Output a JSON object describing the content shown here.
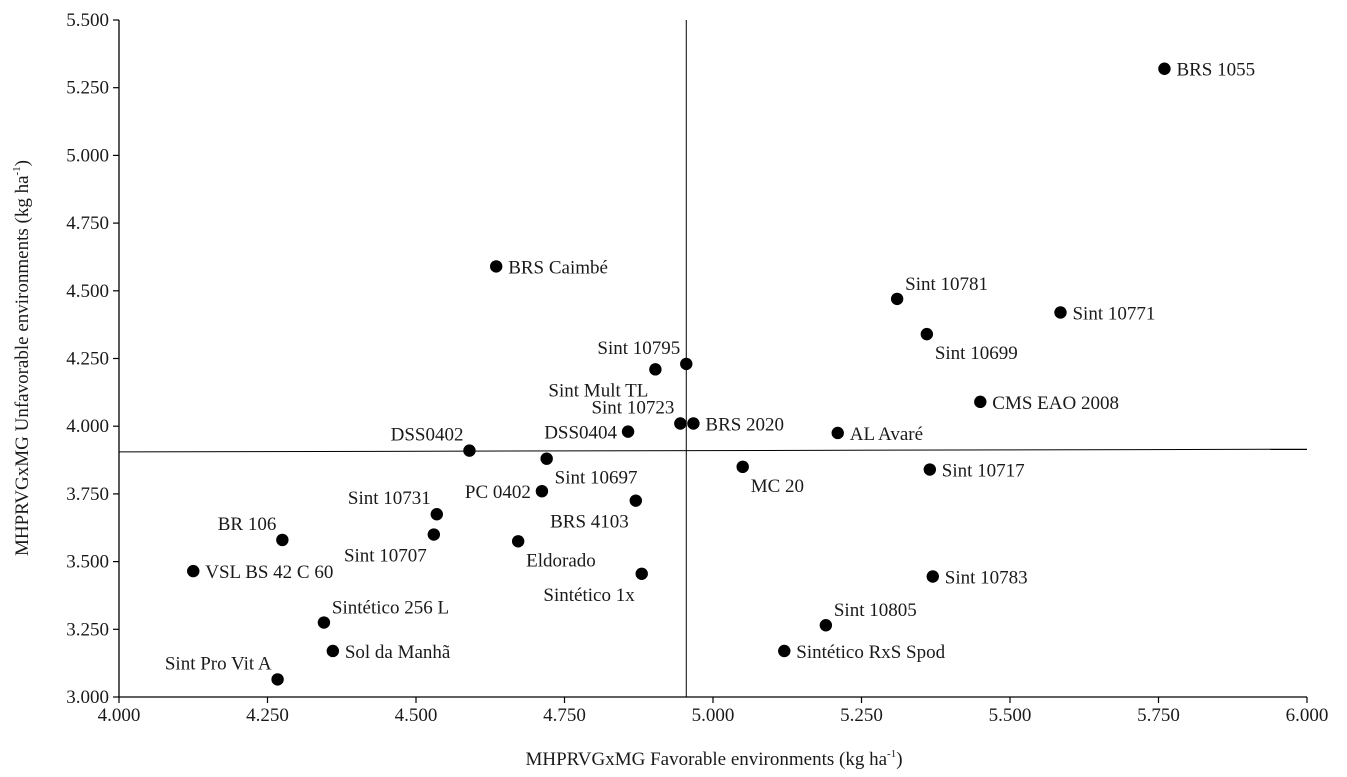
{
  "chart_data": {
    "type": "scatter",
    "title": "",
    "xlabel": {
      "main": "MHPRVGxMG Favorable environments (kg ha",
      "sup": "-1",
      "end": ")"
    },
    "ylabel": {
      "main": "MHPRVGxMG Unfavorable environments (kg ha",
      "sup": "-1",
      "end": ")"
    },
    "xlim": [
      4.0,
      6.0
    ],
    "ylim": [
      3.0,
      5.5
    ],
    "xticks": [
      {
        "v": 4.0,
        "label": "4.000"
      },
      {
        "v": 4.25,
        "label": "4.250"
      },
      {
        "v": 4.5,
        "label": "4.500"
      },
      {
        "v": 4.75,
        "label": "4.750"
      },
      {
        "v": 5.0,
        "label": "5.000"
      },
      {
        "v": 5.25,
        "label": "5.250"
      },
      {
        "v": 5.5,
        "label": "5.500"
      },
      {
        "v": 5.75,
        "label": "5.750"
      },
      {
        "v": 6.0,
        "label": "6.000"
      }
    ],
    "yticks": [
      {
        "v": 3.0,
        "label": "3.000"
      },
      {
        "v": 3.25,
        "label": "3.250"
      },
      {
        "v": 3.5,
        "label": "3.500"
      },
      {
        "v": 3.75,
        "label": "3.750"
      },
      {
        "v": 4.0,
        "label": "4.000"
      },
      {
        "v": 4.25,
        "label": "4.250"
      },
      {
        "v": 4.5,
        "label": "4.500"
      },
      {
        "v": 4.75,
        "label": "4.750"
      },
      {
        "v": 5.0,
        "label": "5.000"
      },
      {
        "v": 5.25,
        "label": "5.250"
      },
      {
        "v": 5.5,
        "label": "5.500"
      }
    ],
    "reference_lines": {
      "vertical_x": 4.955,
      "horizontal": {
        "x0": 4.0,
        "y0": 3.905,
        "x1": 6.0,
        "y1": 3.915
      }
    },
    "grid": false,
    "marker_color": "#000000",
    "points": [
      {
        "name": "BRS 1055",
        "x": 5.76,
        "y": 5.32,
        "pos": "right"
      },
      {
        "name": "BRS Caimbé",
        "x": 4.635,
        "y": 4.59,
        "pos": "right"
      },
      {
        "name": "Sint 10781",
        "x": 5.31,
        "y": 4.47,
        "pos": "upper-right"
      },
      {
        "name": "Sint 10771",
        "x": 5.585,
        "y": 4.42,
        "pos": "right"
      },
      {
        "name": "Sint 10699",
        "x": 5.36,
        "y": 4.34,
        "pos": "lower-right"
      },
      {
        "name": "Sint 10795",
        "x": 4.955,
        "y": 4.23,
        "pos": "upper-left"
      },
      {
        "name": "Sint Mult TL",
        "x": 4.903,
        "y": 4.21,
        "pos": "lower-left"
      },
      {
        "name": "CMS EAO 2008",
        "x": 5.45,
        "y": 4.09,
        "pos": "right"
      },
      {
        "name": "Sint 10723",
        "x": 4.945,
        "y": 4.01,
        "pos": "upper-left"
      },
      {
        "name": "BRS 2020",
        "x": 4.967,
        "y": 4.01,
        "pos": "right"
      },
      {
        "name": "DSS0404",
        "x": 4.857,
        "y": 3.98,
        "pos": "left"
      },
      {
        "name": "AL Avaré",
        "x": 5.21,
        "y": 3.975,
        "pos": "right"
      },
      {
        "name": "DSS0402",
        "x": 4.59,
        "y": 3.91,
        "pos": "upper-left"
      },
      {
        "name": "Sint 10697",
        "x": 4.72,
        "y": 3.88,
        "pos": "lower-right"
      },
      {
        "name": "MC 20",
        "x": 5.05,
        "y": 3.85,
        "pos": "lower-right"
      },
      {
        "name": "Sint 10717",
        "x": 5.365,
        "y": 3.84,
        "pos": "right"
      },
      {
        "name": "PC 0402",
        "x": 4.712,
        "y": 3.76,
        "pos": "left"
      },
      {
        "name": "BRS 4103",
        "x": 4.87,
        "y": 3.725,
        "pos": "lower-left"
      },
      {
        "name": "Sint 10731",
        "x": 4.535,
        "y": 3.675,
        "pos": "upper-left"
      },
      {
        "name": "Sint 10707",
        "x": 4.53,
        "y": 3.6,
        "pos": "lower-left"
      },
      {
        "name": "BR 106",
        "x": 4.275,
        "y": 3.58,
        "pos": "upper-left"
      },
      {
        "name": "Eldorado",
        "x": 4.672,
        "y": 3.575,
        "pos": "lower-right"
      },
      {
        "name": "VSL BS 42 C 60",
        "x": 4.125,
        "y": 3.465,
        "pos": "right"
      },
      {
        "name": "Sintético 1x",
        "x": 4.88,
        "y": 3.455,
        "pos": "lower-left"
      },
      {
        "name": "Sint 10783",
        "x": 5.37,
        "y": 3.445,
        "pos": "right"
      },
      {
        "name": "Sintético 256 L",
        "x": 4.345,
        "y": 3.275,
        "pos": "upper-right"
      },
      {
        "name": "Sint 10805",
        "x": 5.19,
        "y": 3.265,
        "pos": "upper-right"
      },
      {
        "name": "Sol da Manhã",
        "x": 4.36,
        "y": 3.17,
        "pos": "right"
      },
      {
        "name": "Sintético RxS Spod",
        "x": 5.12,
        "y": 3.17,
        "pos": "right"
      },
      {
        "name": "Sint Pro Vit A",
        "x": 4.267,
        "y": 3.065,
        "pos": "upper-left"
      }
    ]
  }
}
